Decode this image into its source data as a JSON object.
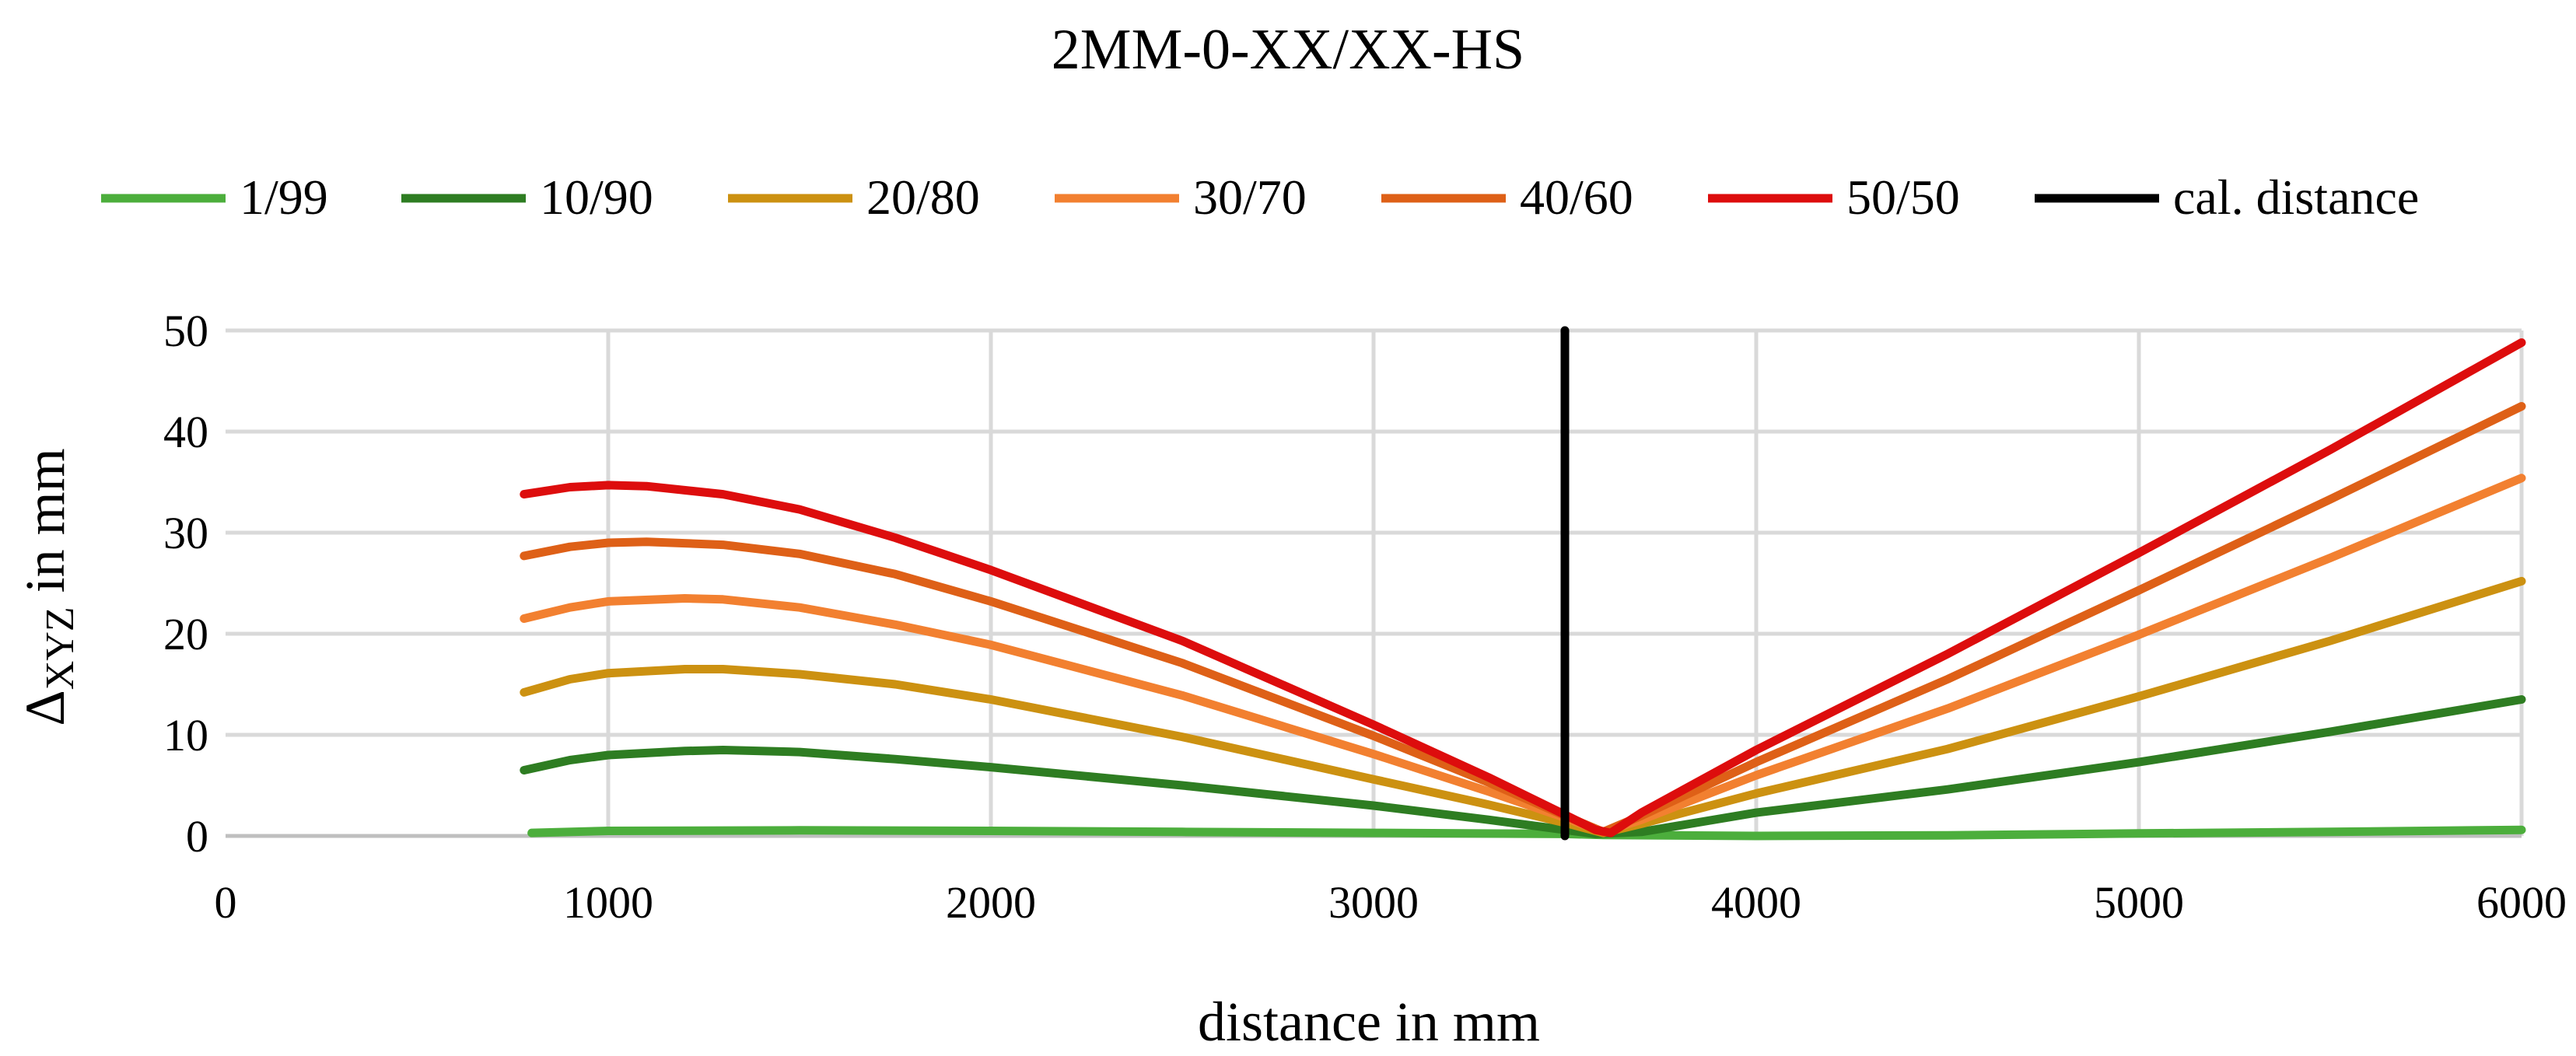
{
  "chart_data": {
    "type": "line",
    "title": "2MM-0-XX/XX-HS",
    "xlabel": "distance in mm",
    "ylabel_main": "Δ",
    "ylabel_sub": "XYZ",
    "ylabel_tail": " in mm",
    "xlim": [
      0,
      6000
    ],
    "ylim": [
      0,
      50
    ],
    "x_ticks": [
      0,
      1000,
      2000,
      3000,
      4000,
      5000,
      6000
    ],
    "y_ticks": [
      0,
      10,
      20,
      30,
      40,
      50
    ],
    "grid": true,
    "legend_position": "top",
    "series": [
      {
        "name": "1/99",
        "color": "#4cae3c",
        "points": [
          [
            800,
            0.3
          ],
          [
            1000,
            0.5
          ],
          [
            1500,
            0.55
          ],
          [
            2000,
            0.5
          ],
          [
            2500,
            0.4
          ],
          [
            3000,
            0.3
          ],
          [
            3500,
            0.2
          ],
          [
            3600,
            0.1
          ],
          [
            4000,
            0.0
          ],
          [
            4500,
            0.05
          ],
          [
            5000,
            0.25
          ],
          [
            5500,
            0.4
          ],
          [
            6000,
            0.6
          ]
        ]
      },
      {
        "name": "10/90",
        "color": "#2e7d22",
        "points": [
          [
            780,
            6.5
          ],
          [
            900,
            7.5
          ],
          [
            1000,
            8.0
          ],
          [
            1200,
            8.4
          ],
          [
            1300,
            8.5
          ],
          [
            1500,
            8.3
          ],
          [
            1750,
            7.6
          ],
          [
            2000,
            6.8
          ],
          [
            2500,
            5.0
          ],
          [
            3000,
            3.0
          ],
          [
            3300,
            1.6
          ],
          [
            3500,
            0.6
          ],
          [
            3580,
            0.2
          ],
          [
            3700,
            0.4
          ],
          [
            4000,
            2.3
          ],
          [
            4500,
            4.6
          ],
          [
            5000,
            7.3
          ],
          [
            5500,
            10.3
          ],
          [
            6000,
            13.5
          ]
        ]
      },
      {
        "name": "20/80",
        "color": "#cc9111",
        "points": [
          [
            780,
            14.2
          ],
          [
            900,
            15.5
          ],
          [
            1000,
            16.1
          ],
          [
            1200,
            16.5
          ],
          [
            1300,
            16.5
          ],
          [
            1500,
            16.0
          ],
          [
            1750,
            15.0
          ],
          [
            2000,
            13.5
          ],
          [
            2500,
            9.8
          ],
          [
            3000,
            5.6
          ],
          [
            3300,
            3.1
          ],
          [
            3500,
            1.3
          ],
          [
            3600,
            0.3
          ],
          [
            3700,
            1.2
          ],
          [
            4000,
            4.2
          ],
          [
            4500,
            8.6
          ],
          [
            5000,
            13.8
          ],
          [
            5500,
            19.3
          ],
          [
            6000,
            25.2
          ]
        ]
      },
      {
        "name": "30/70",
        "color": "#f28030",
        "points": [
          [
            780,
            21.5
          ],
          [
            900,
            22.6
          ],
          [
            1000,
            23.2
          ],
          [
            1200,
            23.5
          ],
          [
            1300,
            23.4
          ],
          [
            1500,
            22.6
          ],
          [
            1750,
            20.9
          ],
          [
            2000,
            18.9
          ],
          [
            2500,
            13.9
          ],
          [
            3000,
            8.1
          ],
          [
            3300,
            4.4
          ],
          [
            3500,
            1.8
          ],
          [
            3600,
            0.4
          ],
          [
            3700,
            1.6
          ],
          [
            4000,
            6.0
          ],
          [
            4500,
            12.6
          ],
          [
            5000,
            19.9
          ],
          [
            5500,
            27.5
          ],
          [
            6000,
            35.4
          ]
        ]
      },
      {
        "name": "40/60",
        "color": "#de6017",
        "points": [
          [
            780,
            27.7
          ],
          [
            900,
            28.6
          ],
          [
            1000,
            29.0
          ],
          [
            1100,
            29.1
          ],
          [
            1300,
            28.8
          ],
          [
            1500,
            27.9
          ],
          [
            1750,
            25.9
          ],
          [
            2000,
            23.2
          ],
          [
            2500,
            17.1
          ],
          [
            3000,
            9.9
          ],
          [
            3300,
            5.3
          ],
          [
            3500,
            2.0
          ],
          [
            3600,
            0.4
          ],
          [
            3700,
            2.0
          ],
          [
            4000,
            7.3
          ],
          [
            4500,
            15.5
          ],
          [
            5000,
            24.3
          ],
          [
            5500,
            33.3
          ],
          [
            6000,
            42.5
          ]
        ]
      },
      {
        "name": "50/50",
        "color": "#dd0d0d",
        "points": [
          [
            780,
            33.8
          ],
          [
            900,
            34.5
          ],
          [
            1000,
            34.7
          ],
          [
            1100,
            34.6
          ],
          [
            1300,
            33.8
          ],
          [
            1500,
            32.3
          ],
          [
            1750,
            29.5
          ],
          [
            2000,
            26.3
          ],
          [
            2500,
            19.3
          ],
          [
            3000,
            11.0
          ],
          [
            3300,
            5.8
          ],
          [
            3500,
            2.1
          ],
          [
            3580,
            0.6
          ],
          [
            3620,
            0.3
          ],
          [
            3700,
            2.3
          ],
          [
            4000,
            8.5
          ],
          [
            4500,
            18.0
          ],
          [
            5000,
            28.0
          ],
          [
            5500,
            38.2
          ],
          [
            6000,
            48.8
          ]
        ]
      },
      {
        "name": "cal. distance",
        "color": "#000000",
        "points": [
          [
            3500,
            0
          ],
          [
            3500,
            50
          ]
        ]
      }
    ]
  }
}
